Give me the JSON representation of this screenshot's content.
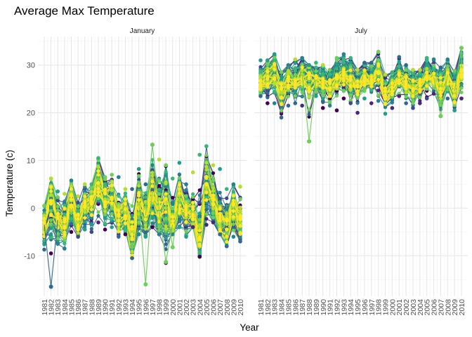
{
  "chart_data": {
    "type": "line",
    "title": "Average Max Temperature",
    "xlabel": "Year",
    "ylabel": "Temperature (c)",
    "ylim": [
      -18.5,
      36
    ],
    "y_ticks": [
      -10,
      0,
      10,
      20,
      30
    ],
    "x": [
      1981,
      1982,
      1983,
      1984,
      1985,
      1986,
      1987,
      1988,
      1989,
      1990,
      1991,
      1992,
      1993,
      1994,
      1995,
      1996,
      1997,
      1998,
      1999,
      2000,
      2001,
      2002,
      2003,
      2004,
      2005,
      2006,
      2007,
      2008,
      2009,
      2010
    ],
    "grid": true,
    "legend": "none",
    "color_scale": "viridis",
    "palette": [
      "#440154",
      "#482878",
      "#3e4989",
      "#31688e",
      "#26828e",
      "#1f9e89",
      "#35b779",
      "#6ece58",
      "#b5de2b",
      "#fde725"
    ],
    "panels": [
      {
        "name": "January",
        "series_mean": [
          -3.5,
          1.5,
          -2.5,
          -3.0,
          2.0,
          -3.0,
          0.5,
          1.0,
          5.5,
          2.0,
          2.5,
          -2.0,
          -0.5,
          -6.0,
          1.0,
          -1.5,
          3.5,
          -0.5,
          1.5,
          -3.5,
          2.0,
          -0.5,
          -1.0,
          -6.5,
          5.5,
          2.0,
          -2.5,
          -4.0,
          0.5,
          -2.5
        ],
        "series_low": [
          -8.7,
          -9.5,
          -7.5,
          -8.5,
          -5.0,
          -6.0,
          -4.5,
          -5.0,
          -3.0,
          -4.5,
          -4.0,
          -6.0,
          -5.5,
          -10.5,
          -5.5,
          -6.0,
          -4.0,
          -5.5,
          -11.5,
          -5.5,
          -4.0,
          -6.0,
          -4.0,
          -10.2,
          -3.5,
          -3.0,
          -5.5,
          -8.0,
          -6.0,
          -7.0
        ],
        "series_high": [
          0.5,
          6.2,
          3.5,
          3.0,
          5.8,
          2.5,
          5.0,
          5.0,
          10.5,
          6.5,
          7.0,
          6.5,
          4.0,
          4.0,
          8.2,
          5.0,
          13.3,
          10.2,
          9.0,
          6.2,
          9.5,
          5.0,
          7.5,
          11.2,
          13.0,
          9.0,
          8.2,
          4.0,
          5.0,
          4.5
        ],
        "outliers": [
          [
            1982,
            -16.5
          ],
          [
            1996,
            -16.0
          ],
          [
            1999,
            -11.3
          ],
          [
            2000,
            -8.2
          ],
          [
            1997,
            13.3
          ]
        ]
      },
      {
        "name": "July",
        "series_mean": [
          26.5,
          27.5,
          28.5,
          24.5,
          27.0,
          26.5,
          28.0,
          27.5,
          27.0,
          26.5,
          25.5,
          27.5,
          28.5,
          27.0,
          26.0,
          27.5,
          27.0,
          28.5,
          24.0,
          25.5,
          27.5,
          26.5,
          25.5,
          26.0,
          27.5,
          27.5,
          25.5,
          28.0,
          24.5,
          29.5
        ],
        "series_low": [
          23.5,
          22.0,
          22.0,
          19.0,
          21.5,
          22.0,
          21.5,
          14.0,
          23.5,
          21.0,
          21.5,
          20.5,
          23.0,
          22.0,
          20.0,
          23.0,
          22.0,
          22.5,
          19.8,
          21.0,
          23.5,
          22.0,
          21.0,
          22.0,
          23.0,
          24.0,
          19.3,
          23.0,
          20.5,
          23.0
        ],
        "series_high": [
          31.0,
          31.0,
          32.3,
          28.5,
          30.0,
          31.2,
          31.5,
          30.0,
          30.5,
          30.0,
          29.0,
          31.5,
          32.3,
          31.5,
          29.0,
          30.5,
          30.5,
          32.8,
          28.0,
          28.5,
          31.7,
          30.0,
          29.0,
          29.0,
          31.5,
          31.2,
          29.5,
          31.2,
          28.8,
          33.6
        ],
        "outliers": [
          [
            1988,
            14.0
          ],
          [
            2007,
            19.3
          ],
          [
            2010,
            33.6
          ]
        ]
      }
    ]
  }
}
